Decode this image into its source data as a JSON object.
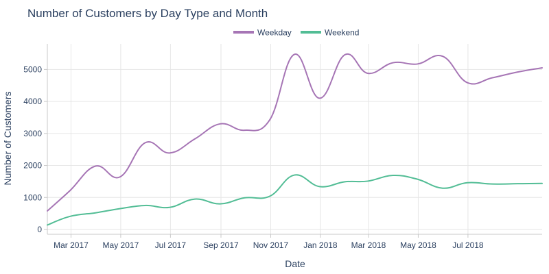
{
  "chart_data": {
    "type": "line",
    "title": "Number of Customers by Day Type and Month",
    "xlabel": "Date",
    "ylabel": "Number of Customers",
    "ylim": [
      -150,
      5800
    ],
    "x_range": [
      "2017-01-31",
      "2018-09-30"
    ],
    "y_ticks": [
      0,
      1000,
      2000,
      3000,
      4000,
      5000
    ],
    "x_ticks": [
      {
        "date": "2017-03-01",
        "label": "Mar 2017"
      },
      {
        "date": "2017-05-01",
        "label": "May 2017"
      },
      {
        "date": "2017-07-01",
        "label": "Jul 2017"
      },
      {
        "date": "2017-09-01",
        "label": "Sep 2017"
      },
      {
        "date": "2017-11-01",
        "label": "Nov 2017"
      },
      {
        "date": "2018-01-01",
        "label": "Jan 2018"
      },
      {
        "date": "2018-03-01",
        "label": "Mar 2018"
      },
      {
        "date": "2018-05-01",
        "label": "May 2018"
      },
      {
        "date": "2018-07-01",
        "label": "Jul 2018"
      }
    ],
    "x": [
      "2017-01-31",
      "2017-02-28",
      "2017-03-31",
      "2017-04-30",
      "2017-05-31",
      "2017-06-30",
      "2017-07-31",
      "2017-08-31",
      "2017-09-30",
      "2017-10-31",
      "2017-11-30",
      "2017-12-31",
      "2018-01-31",
      "2018-02-28",
      "2018-03-31",
      "2018-04-30",
      "2018-05-31",
      "2018-06-30",
      "2018-07-31",
      "2018-08-31",
      "2018-09-30"
    ],
    "series": [
      {
        "name": "Weekday",
        "color": "#a675b5",
        "values": [
          580,
          1220,
          1980,
          1640,
          2710,
          2390,
          2830,
          3300,
          3100,
          3430,
          5470,
          4100,
          5460,
          4880,
          5210,
          5170,
          5410,
          4590,
          4740,
          4920,
          5050
        ]
      },
      {
        "name": "Weekend",
        "color": "#52bd95",
        "values": [
          140,
          410,
          520,
          650,
          750,
          690,
          950,
          800,
          990,
          1040,
          1700,
          1340,
          1490,
          1510,
          1690,
          1570,
          1290,
          1460,
          1420,
          1430,
          1440
        ]
      }
    ],
    "legend_position": "top-center"
  }
}
